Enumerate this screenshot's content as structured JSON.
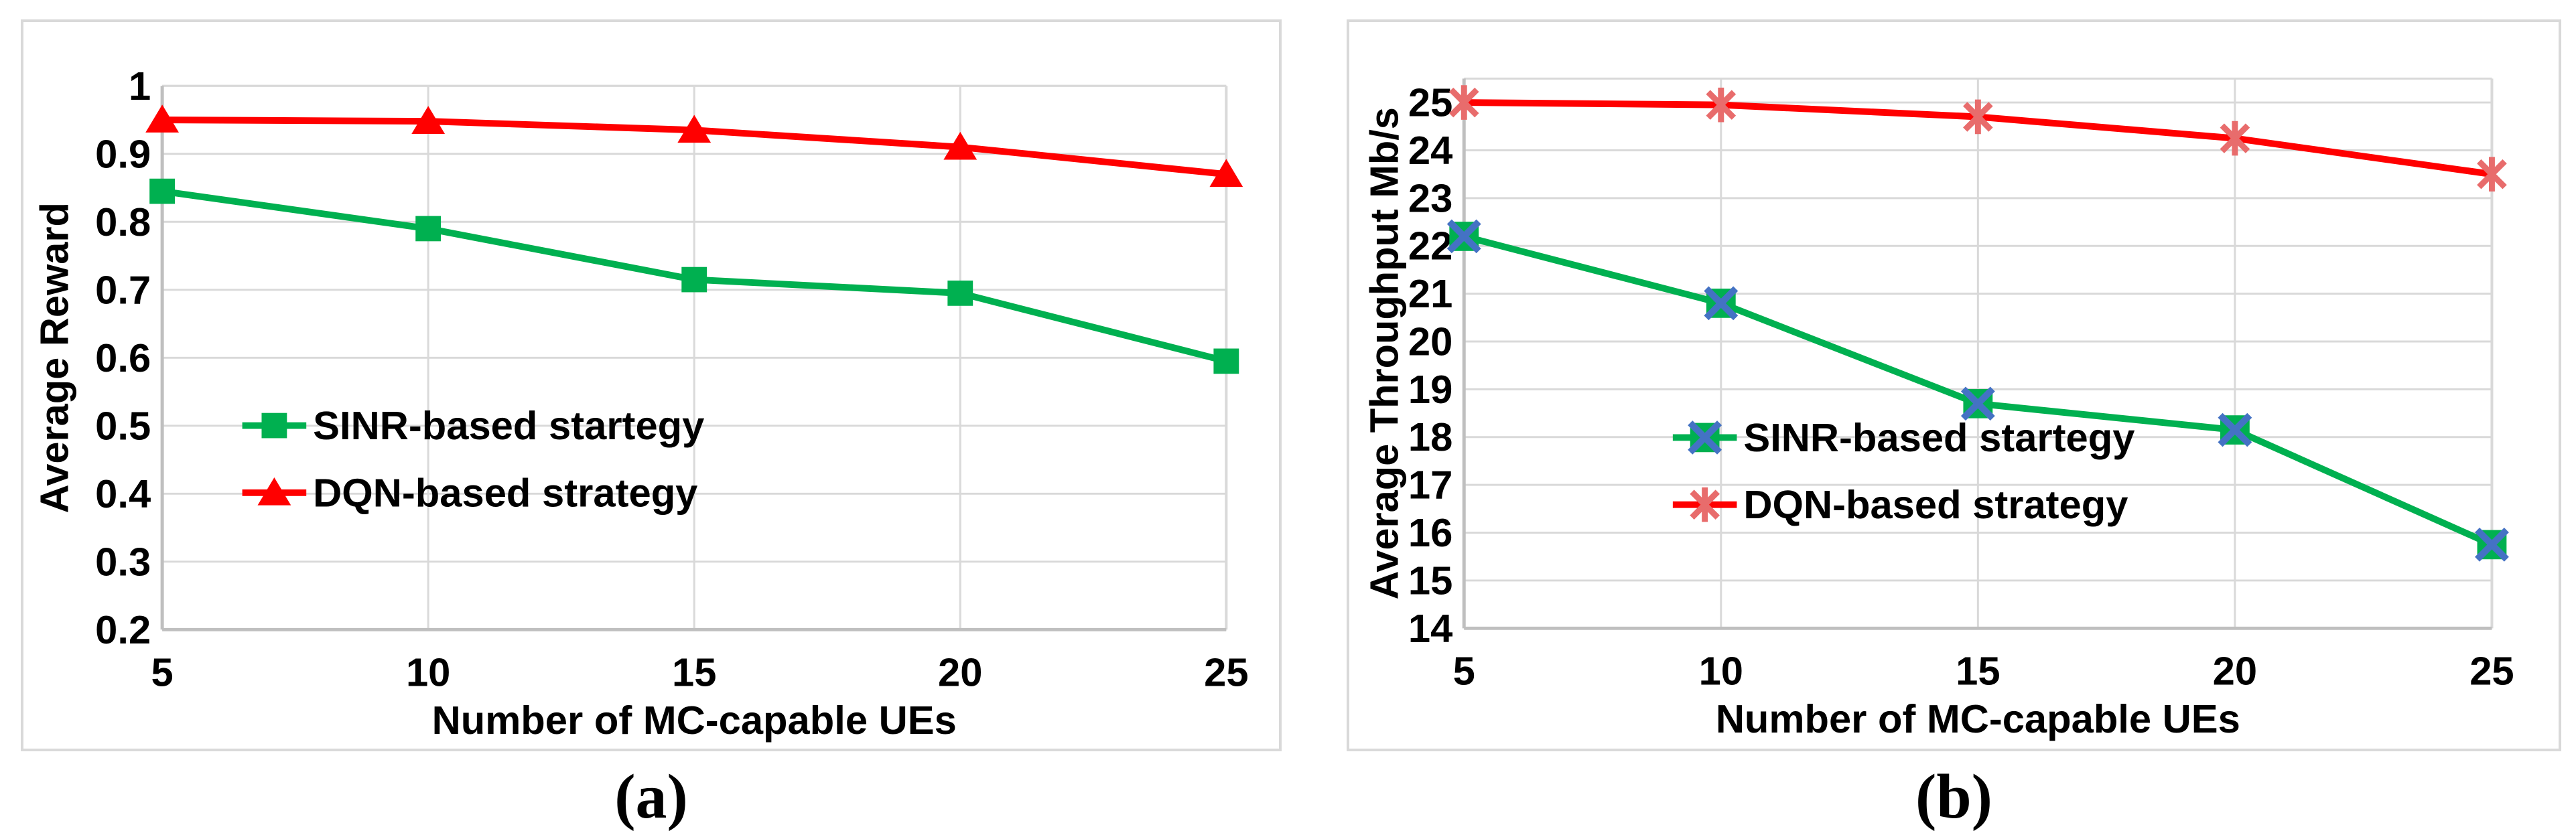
{
  "page": {
    "background": "#FFFFFF"
  },
  "styles": {
    "grid_color": "#D9D9D9",
    "axis_color": "#BFBFBF",
    "panel_border_color": "#D9D9D9",
    "text_color": "#000000",
    "series_green": "#00B050",
    "series_red": "#FF0000",
    "marker_blue_x": "#4472C4",
    "marker_salmon": "#E86C6C"
  },
  "figures": [
    {
      "caption": "(a)"
    },
    {
      "caption": "(b)"
    }
  ],
  "chart_data": [
    {
      "type": "line",
      "panel": "a",
      "title": "",
      "xlabel": "Number of MC-capable UEs",
      "ylabel": "Average Reward",
      "x": [
        5,
        10,
        15,
        20,
        25
      ],
      "xtick_labels": [
        "5",
        "10",
        "15",
        "20",
        "25"
      ],
      "ylim": [
        0.2,
        1.0
      ],
      "ytick_values": [
        0.2,
        0.3,
        0.4,
        0.5,
        0.6,
        0.7,
        0.8,
        0.9,
        1.0
      ],
      "ytick_labels": [
        "0.2",
        "0.3",
        "0.4",
        "0.5",
        "0.6",
        "0.7",
        "0.8",
        "0.9",
        "1"
      ],
      "grid": true,
      "legend_position": "inside-middle-left",
      "series": [
        {
          "name": "SINR-based startegy",
          "color_key": "series_green",
          "marker": "square",
          "values": [
            0.845,
            0.79,
            0.715,
            0.695,
            0.595
          ]
        },
        {
          "name": "DQN-based strategy",
          "color_key": "series_red",
          "marker": "triangle",
          "values": [
            0.95,
            0.948,
            0.935,
            0.91,
            0.87
          ]
        }
      ]
    },
    {
      "type": "line",
      "panel": "b",
      "title": "",
      "xlabel": "Number of MC-capable UEs",
      "ylabel": "Average Throughput Mb/s",
      "x": [
        5,
        10,
        15,
        20,
        25
      ],
      "xtick_labels": [
        "5",
        "10",
        "15",
        "20",
        "25"
      ],
      "ylim": [
        14,
        25.5
      ],
      "ytick_values": [
        14,
        15,
        16,
        17,
        18,
        19,
        20,
        21,
        22,
        23,
        24,
        25
      ],
      "ytick_labels": [
        "14",
        "15",
        "16",
        "17",
        "18",
        "19",
        "20",
        "21",
        "22",
        "23",
        "24",
        "25"
      ],
      "grid": true,
      "legend_position": "inside-middle-left",
      "series": [
        {
          "name": "SINR-based startegy",
          "color_key": "series_green",
          "marker": "square-x",
          "marker_accent_key": "marker_blue_x",
          "values": [
            22.2,
            20.8,
            18.7,
            18.15,
            15.75
          ]
        },
        {
          "name": "DQN-based strategy",
          "color_key": "series_red",
          "marker": "asterisk",
          "marker_color_key": "marker_salmon",
          "values": [
            25.0,
            24.95,
            24.7,
            24.25,
            23.5
          ]
        }
      ]
    }
  ]
}
